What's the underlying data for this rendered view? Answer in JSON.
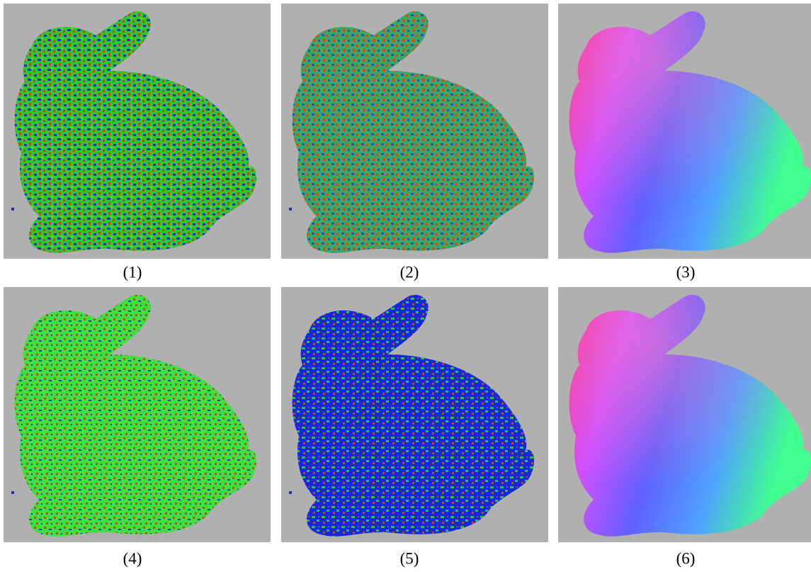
{
  "figure": {
    "captions": [
      "(1)",
      "(2)",
      "(3)",
      "(4)",
      "(5)",
      "(6)"
    ]
  }
}
